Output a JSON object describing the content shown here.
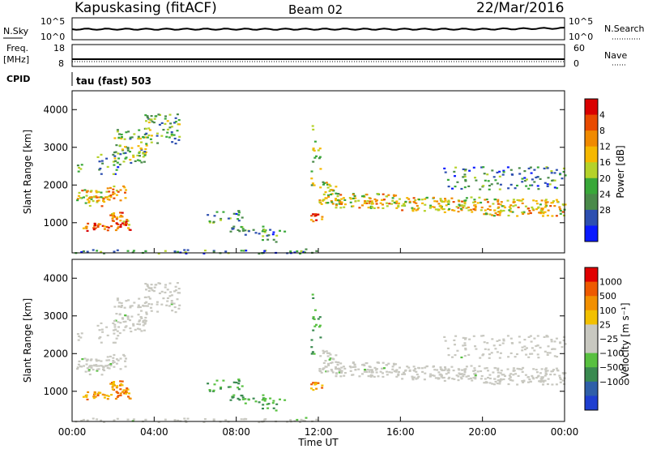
{
  "header": {
    "station": "Kapuskasing (fitACF)",
    "beam": "Beam 02",
    "date": "22/Mar/2016"
  },
  "panels": {
    "nsky": {
      "label": "N.Sky",
      "ticks": [
        "10^5",
        "10^0"
      ],
      "right_label": "N.Search",
      "right_ticks": [
        "10^5",
        "10^0"
      ]
    },
    "freq": {
      "label_line1": "Freq.",
      "label_line2": "[MHz]",
      "ticks": [
        "18",
        "8"
      ],
      "right_label": "Nave",
      "right_ticks": [
        "60",
        "0"
      ]
    },
    "cpid": {
      "label": "CPID",
      "value": "tau (fast) 503"
    }
  },
  "chart_data": [
    {
      "type": "heatmap",
      "name": "power",
      "xlabel": "Time UT",
      "ylabel": "Slant Range [km]",
      "xlim": [
        0,
        24
      ],
      "ylim": [
        200,
        4500
      ],
      "x_ticks": [
        "00:00",
        "04:00",
        "08:00",
        "12:00",
        "16:00",
        "20:00",
        "00:00"
      ],
      "y_ticks": [
        "1000",
        "2000",
        "3000",
        "4000"
      ],
      "colorbar": {
        "label": "Power [dB]",
        "ticks": [
          "4",
          "8",
          "12",
          "16",
          "20",
          "24",
          "28"
        ],
        "colors": [
          "#0a1aff",
          "#2d4fb0",
          "#4a8a4a",
          "#39a839",
          "#b5d22a",
          "#f5b800",
          "#f08a00",
          "#e84a00",
          "#d90000"
        ]
      }
    },
    {
      "type": "heatmap",
      "name": "velocity",
      "xlabel": "Time UT",
      "ylabel": "Slant Range [km]",
      "xlim": [
        0,
        24
      ],
      "ylim": [
        200,
        4500
      ],
      "x_ticks": [
        "00:00",
        "04:00",
        "08:00",
        "12:00",
        "16:00",
        "20:00",
        "00:00"
      ],
      "y_ticks": [
        "1000",
        "2000",
        "3000",
        "4000"
      ],
      "colorbar": {
        "label": "Velocity [m s⁻¹]",
        "ticks": [
          "1000",
          "500",
          "100",
          "25",
          "−25",
          "−100",
          "−500",
          "−1000"
        ],
        "colors": [
          "#1f3fd0",
          "#2f5fa8",
          "#3a8a50",
          "#58c040",
          "#c8c8c0",
          "#c8c8c0",
          "#f2c000",
          "#f29000",
          "#ee5a00",
          "#e00000"
        ]
      }
    }
  ],
  "axis": {
    "xlabel": "Time UT"
  }
}
